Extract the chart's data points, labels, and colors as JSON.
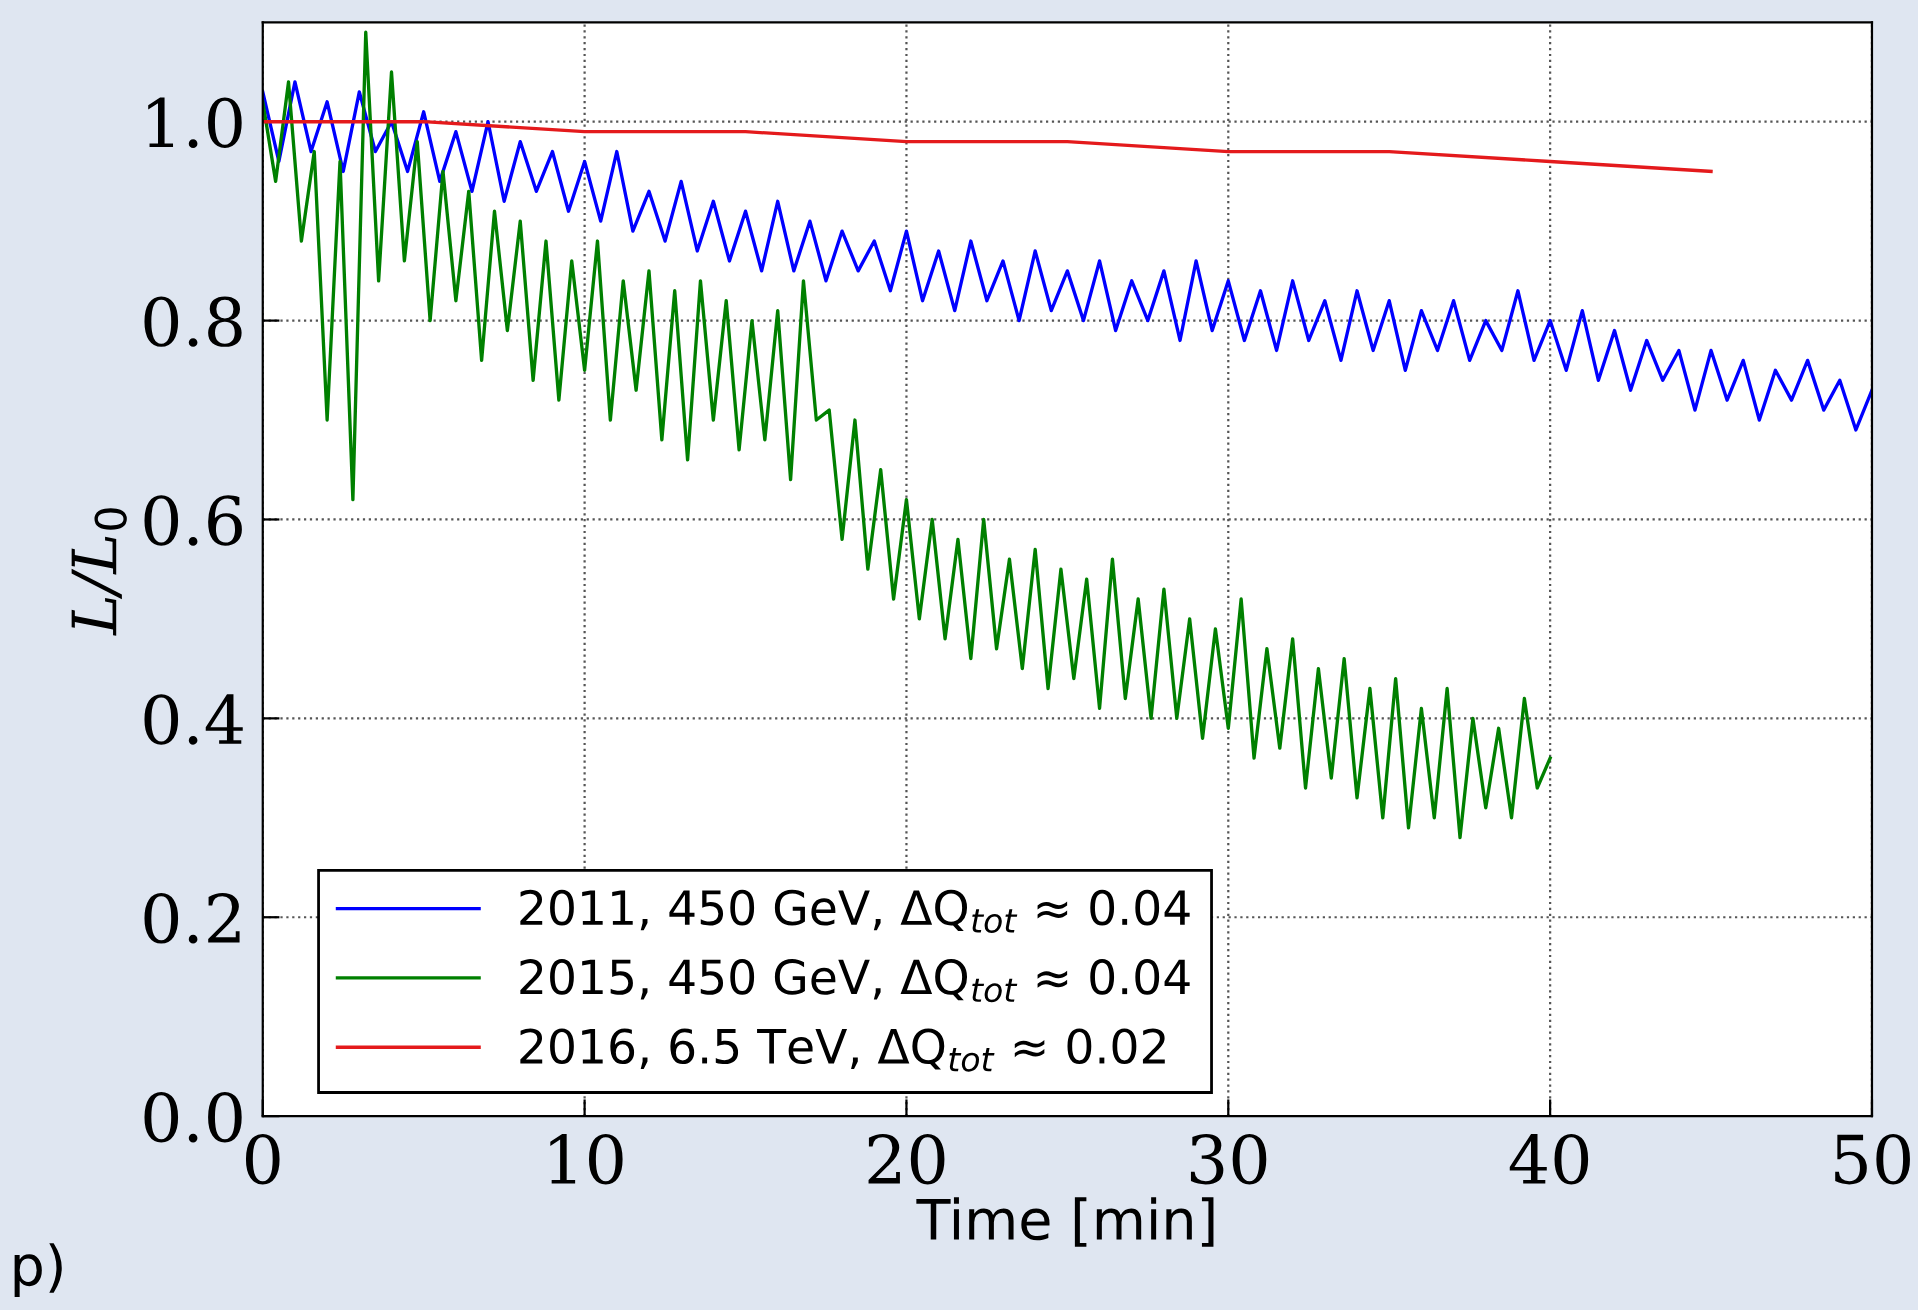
{
  "chart_data": {
    "type": "line",
    "xlabel": "Time [min]",
    "ylabel": "L/L$_{0}$",
    "xlim": [
      0,
      50
    ],
    "ylim": [
      0,
      1.1
    ],
    "xticks": [
      0,
      10,
      20,
      30,
      40,
      50
    ],
    "yticks": [
      {
        "value": 0,
        "label": "0.0"
      },
      0.2,
      0.4,
      0.6,
      0.8,
      {
        "value": 1.0,
        "label": "1.0"
      }
    ],
    "grid": true,
    "legend": "bottom left",
    "line_style": "solid",
    "marker": "none",
    "annotations": [
      "p)"
    ],
    "series": [
      {
        "name": "2011, 450 GeV, ΔQ$_{tot}$ ≈ 0.04",
        "color": "#0000ff",
        "x": [
          0,
          0.5,
          1,
          1.5,
          2,
          2.5,
          3,
          3.5,
          4,
          4.5,
          5,
          5.5,
          6,
          6.5,
          7,
          7.5,
          8,
          8.5,
          9,
          9.5,
          10,
          10.5,
          11,
          11.5,
          12,
          12.5,
          13,
          13.5,
          14,
          14.5,
          15,
          15.5,
          16,
          16.5,
          17,
          17.5,
          18,
          18.5,
          19,
          19.5,
          20,
          20.5,
          21,
          21.5,
          22,
          22.5,
          23,
          23.5,
          24,
          24.5,
          25,
          25.5,
          26,
          26.5,
          27,
          27.5,
          28,
          28.5,
          29,
          29.5,
          30,
          30.5,
          31,
          31.5,
          32,
          32.5,
          33,
          33.5,
          34,
          34.5,
          35,
          35.5,
          36,
          36.5,
          37,
          37.5,
          38,
          38.5,
          39,
          39.5,
          40,
          40.5,
          41,
          41.5,
          42,
          42.5,
          43,
          43.5,
          44,
          44.5,
          45,
          45.5,
          46,
          46.5,
          47,
          47.5,
          48,
          48.5,
          49,
          49.5,
          50
        ],
        "values": [
          1.03,
          0.96,
          1.04,
          0.97,
          1.02,
          0.95,
          1.03,
          0.97,
          1.0,
          0.95,
          1.01,
          0.94,
          0.99,
          0.93,
          1.0,
          0.92,
          0.98,
          0.93,
          0.97,
          0.91,
          0.96,
          0.9,
          0.97,
          0.89,
          0.93,
          0.88,
          0.94,
          0.87,
          0.92,
          0.86,
          0.91,
          0.85,
          0.92,
          0.85,
          0.9,
          0.84,
          0.89,
          0.85,
          0.88,
          0.83,
          0.89,
          0.82,
          0.87,
          0.81,
          0.88,
          0.82,
          0.86,
          0.8,
          0.87,
          0.81,
          0.85,
          0.8,
          0.86,
          0.79,
          0.84,
          0.8,
          0.85,
          0.78,
          0.86,
          0.79,
          0.84,
          0.78,
          0.83,
          0.77,
          0.84,
          0.78,
          0.82,
          0.76,
          0.83,
          0.77,
          0.82,
          0.75,
          0.81,
          0.77,
          0.82,
          0.76,
          0.8,
          0.77,
          0.83,
          0.76,
          0.8,
          0.75,
          0.81,
          0.74,
          0.79,
          0.73,
          0.78,
          0.74,
          0.77,
          0.71,
          0.77,
          0.72,
          0.76,
          0.7,
          0.75,
          0.72,
          0.76,
          0.71,
          0.74,
          0.69,
          0.73
        ]
      },
      {
        "name": "2015, 450 GeV, ΔQ$_{tot}$ ≈ 0.04",
        "color": "#008000",
        "x": [
          0,
          0.4,
          0.8,
          1.2,
          1.6,
          2,
          2.4,
          2.8,
          3.2,
          3.6,
          4,
          4.4,
          4.8,
          5.2,
          5.6,
          6,
          6.4,
          6.8,
          7.2,
          7.6,
          8,
          8.4,
          8.8,
          9.2,
          9.6,
          10,
          10.4,
          10.8,
          11.2,
          11.6,
          12,
          12.4,
          12.8,
          13.2,
          13.6,
          14,
          14.4,
          14.8,
          15.2,
          15.6,
          16,
          16.4,
          16.8,
          17.2,
          17.6,
          18,
          18.4,
          18.8,
          19.2,
          19.6,
          20,
          20.4,
          20.8,
          21.2,
          21.6,
          22,
          22.4,
          22.8,
          23.2,
          23.6,
          24,
          24.4,
          24.8,
          25.2,
          25.6,
          26,
          26.4,
          26.8,
          27.2,
          27.6,
          28,
          28.4,
          28.8,
          29.2,
          29.6,
          30,
          30.4,
          30.8,
          31.2,
          31.6,
          32,
          32.4,
          32.8,
          33.2,
          33.6,
          34,
          34.4,
          34.8,
          35.2,
          35.6,
          36,
          36.4,
          36.8,
          37.2,
          37.6,
          38,
          38.4,
          38.8,
          39.2,
          39.6,
          40
        ],
        "values": [
          1.02,
          0.94,
          1.04,
          0.88,
          0.97,
          0.7,
          0.96,
          0.62,
          1.09,
          0.84,
          1.05,
          0.86,
          0.98,
          0.8,
          0.95,
          0.82,
          0.93,
          0.76,
          0.91,
          0.79,
          0.9,
          0.74,
          0.88,
          0.72,
          0.86,
          0.75,
          0.88,
          0.7,
          0.84,
          0.73,
          0.85,
          0.68,
          0.83,
          0.66,
          0.84,
          0.7,
          0.82,
          0.67,
          0.8,
          0.68,
          0.81,
          0.64,
          0.84,
          0.7,
          0.71,
          0.58,
          0.7,
          0.55,
          0.65,
          0.52,
          0.62,
          0.5,
          0.6,
          0.48,
          0.58,
          0.46,
          0.6,
          0.47,
          0.56,
          0.45,
          0.57,
          0.43,
          0.55,
          0.44,
          0.54,
          0.41,
          0.56,
          0.42,
          0.52,
          0.4,
          0.53,
          0.4,
          0.5,
          0.38,
          0.49,
          0.39,
          0.52,
          0.36,
          0.47,
          0.37,
          0.48,
          0.33,
          0.45,
          0.34,
          0.46,
          0.32,
          0.43,
          0.3,
          0.44,
          0.29,
          0.41,
          0.3,
          0.43,
          0.28,
          0.4,
          0.31,
          0.39,
          0.3,
          0.42,
          0.33,
          0.36
        ]
      },
      {
        "name": "2016, 6.5 TeV, ΔQ$_{tot}$ ≈ 0.02",
        "color": "#e41a1c",
        "x": [
          0,
          5,
          10,
          15,
          20,
          25,
          30,
          35,
          40,
          45
        ],
        "values": [
          1.0,
          1.0,
          0.99,
          0.99,
          0.98,
          0.98,
          0.97,
          0.97,
          0.96,
          0.95
        ]
      }
    ]
  }
}
